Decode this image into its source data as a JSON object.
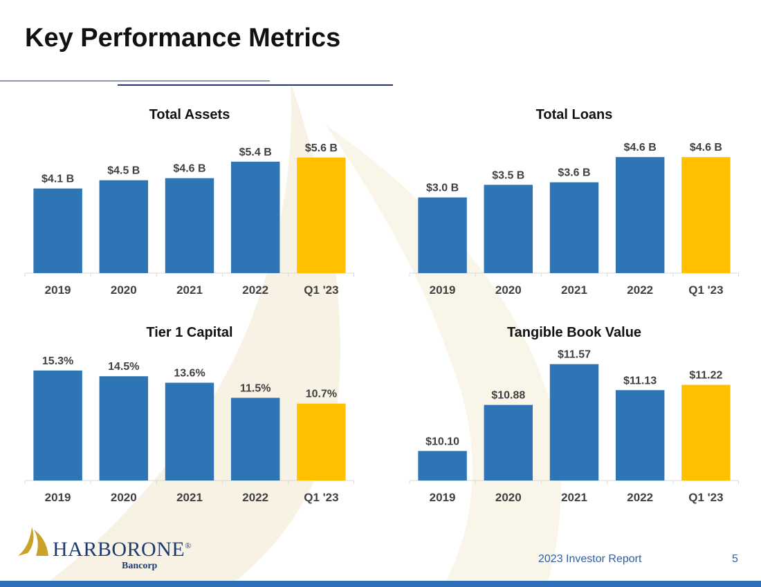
{
  "page_title": "Key Performance Metrics",
  "colors": {
    "bar": "#2E75B6",
    "highlight": "#FFC000",
    "text": "#404040",
    "axis": "#D9D9D9",
    "title_rule_light": "#8E96AD",
    "title_rule_dark": "#23356B",
    "footer_bar": "#2E6FBA",
    "brand_navy": "#1F3A73",
    "brand_gold": "#C9A227"
  },
  "chart_data": [
    {
      "type": "bar",
      "title": "Total Assets",
      "categories": [
        "2019",
        "2020",
        "2021",
        "2022",
        "Q1 '23"
      ],
      "values": [
        4.1,
        4.5,
        4.6,
        5.4,
        5.6
      ],
      "labels": [
        "$4.1 B",
        "$4.5 B",
        "$4.6 B",
        "$5.4 B",
        "$5.6 B"
      ],
      "highlight_index": 4,
      "ylim": [
        0,
        6.6
      ],
      "grid": false
    },
    {
      "type": "bar",
      "title": "Total Loans",
      "categories": [
        "2019",
        "2020",
        "2021",
        "2022",
        "Q1 '23"
      ],
      "values": [
        3.0,
        3.5,
        3.6,
        4.6,
        4.6
      ],
      "labels": [
        "$3.0 B",
        "$3.5 B",
        "$3.6 B",
        "$4.6 B",
        "$4.6 B"
      ],
      "highlight_index": 4,
      "ylim": [
        0,
        5.4
      ],
      "grid": false
    },
    {
      "type": "bar",
      "title": "Tier 1 Capital",
      "categories": [
        "2019",
        "2020",
        "2021",
        "2022",
        "Q1 '23"
      ],
      "values": [
        15.3,
        14.5,
        13.6,
        11.5,
        10.7
      ],
      "labels": [
        "15.3%",
        "14.5%",
        "13.6%",
        "11.5%",
        "10.7%"
      ],
      "highlight_index": 4,
      "ylim": [
        0,
        17.5
      ],
      "grid": false
    },
    {
      "type": "bar",
      "title": "Tangible Book Value",
      "categories": [
        "2019",
        "2020",
        "2021",
        "2022",
        "Q1 '23"
      ],
      "values": [
        10.1,
        10.88,
        11.57,
        11.13,
        11.22
      ],
      "labels": [
        "$10.10",
        "$10.88",
        "$11.57",
        "$11.13",
        "$11.22"
      ],
      "highlight_index": 4,
      "ylim": [
        9.6,
        11.73
      ],
      "grid": false
    }
  ],
  "logo": {
    "name": "HARBORONE",
    "registered_mark": "®",
    "subtitle": "Bancorp",
    "icon": "sail-icon"
  },
  "footer": {
    "report_label": "2023 Investor Report",
    "page_number": "5"
  }
}
